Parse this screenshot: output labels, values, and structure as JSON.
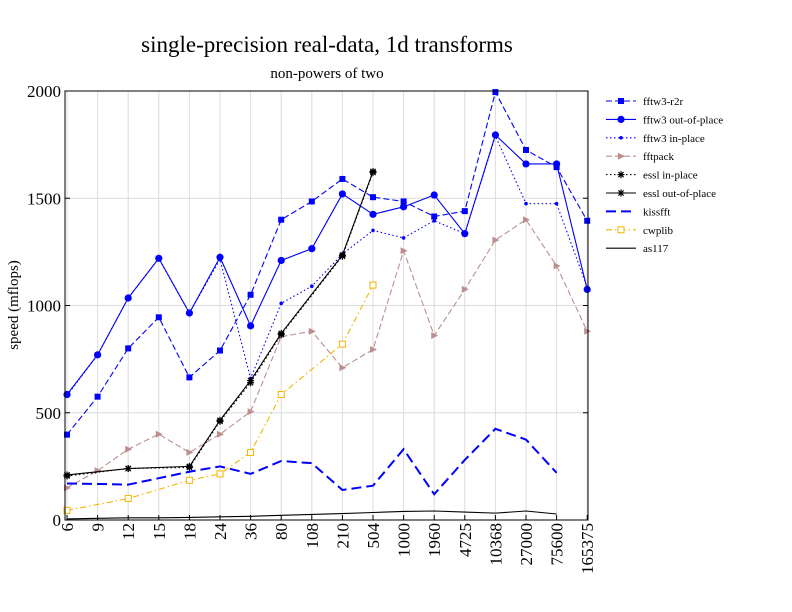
{
  "chart_data": {
    "type": "line",
    "title": "single-precision real-data, 1d transforms",
    "subtitle": "non-powers of two",
    "xlabel": "",
    "ylabel": "speed (mflops)",
    "ylim": [
      0,
      2000
    ],
    "yticks": [
      0,
      500,
      1000,
      1500,
      2000
    ],
    "grid": true,
    "legend_position": "right",
    "categories": [
      "6",
      "9",
      "12",
      "15",
      "18",
      "24",
      "36",
      "80",
      "108",
      "210",
      "504",
      "1000",
      "1960",
      "4725",
      "10368",
      "27000",
      "75600",
      "165375"
    ],
    "series": [
      {
        "name": "fftw3-r2r",
        "color": "#0000ff",
        "dash": "dashed",
        "marker": "square",
        "values": [
          398,
          575,
          800,
          945,
          665,
          790,
          1050,
          1400,
          1485,
          1590,
          1505,
          1485,
          1415,
          1440,
          1995,
          1725,
          1645,
          1395
        ]
      },
      {
        "name": "fftw3 out-of-place",
        "color": "#0000ff",
        "dash": "solid",
        "marker": "circle",
        "values": [
          585,
          770,
          1035,
          1220,
          965,
          1225,
          905,
          1210,
          1265,
          1520,
          1425,
          1460,
          1515,
          1335,
          1795,
          1660,
          1660,
          1075
        ]
      },
      {
        "name": "fftw3 in-place",
        "color": "#0000ff",
        "dash": "dotted",
        "marker": "dot",
        "values": [
          580,
          770,
          1035,
          1220,
          965,
          1215,
          660,
          1010,
          1090,
          1240,
          1350,
          1315,
          1395,
          1335,
          1790,
          1475,
          1475,
          1085
        ]
      },
      {
        "name": "fftpack",
        "color": "#bc8f8f",
        "dash": "dashed",
        "marker": "triangle",
        "values": [
          150,
          230,
          330,
          400,
          315,
          400,
          505,
          855,
          880,
          710,
          795,
          1255,
          860,
          1075,
          1305,
          1400,
          1185,
          880
        ]
      },
      {
        "name": "essl in-place",
        "color": "#000000",
        "dash": "dotted",
        "marker": "star",
        "values": [
          205,
          null,
          240,
          null,
          245,
          460,
          640,
          865,
          null,
          1230,
          1620,
          null,
          null,
          null,
          null,
          null,
          null,
          null
        ]
      },
      {
        "name": "essl out-of-place",
        "color": "#000000",
        "dash": "solid",
        "marker": "star",
        "values": [
          210,
          null,
          240,
          null,
          250,
          465,
          650,
          870,
          null,
          1235,
          1625,
          null,
          null,
          null,
          null,
          null,
          null,
          null
        ]
      },
      {
        "name": "kissfft",
        "color": "#0000ff",
        "dash": "longdash",
        "marker": "none",
        "values": [
          170,
          168,
          165,
          195,
          225,
          250,
          215,
          275,
          265,
          140,
          160,
          330,
          120,
          280,
          425,
          375,
          220,
          null
        ]
      },
      {
        "name": "cwplib",
        "color": "#f4b400",
        "dash": "dashdot",
        "marker": "opensquare",
        "values": [
          45,
          null,
          100,
          null,
          185,
          215,
          315,
          585,
          null,
          820,
          1095,
          null,
          null,
          null,
          null,
          null,
          null,
          null
        ]
      },
      {
        "name": "as117",
        "color": "#000000",
        "dash": "solid",
        "marker": "none",
        "values": [
          5,
          8,
          10,
          10,
          12,
          15,
          17,
          22,
          26,
          30,
          35,
          40,
          42,
          37,
          32,
          42,
          28,
          null
        ]
      }
    ]
  }
}
